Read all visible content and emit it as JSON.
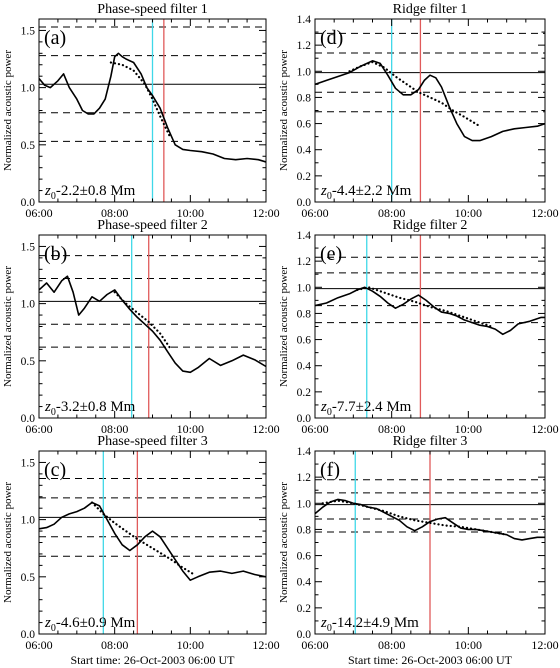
{
  "figure": {
    "xlabel": "Start time: 26-Oct-2003 06:00 UT",
    "ylabel": "Normalized acoustic power"
  },
  "colors": {
    "cyan": "#3fd8e8",
    "red": "#e05a5a",
    "data": "#000000"
  },
  "chart_data": [
    {
      "type": "line",
      "title": "Phase-speed filter 1",
      "panel_label": "(a)",
      "z0_label": "-2.2±0.8 Mm",
      "xlim": [
        6,
        12
      ],
      "ylim": [
        0,
        1.6
      ],
      "xticks": [
        6,
        8,
        10,
        12
      ],
      "xticklabels": [
        "06:00",
        "08:00",
        "10:00",
        "12:00"
      ],
      "yticks": [
        0,
        0.5,
        1.0,
        1.5
      ],
      "yticklabels": [
        "0.0",
        "0.5",
        "1.0",
        "1.5"
      ],
      "hline_solid": 1.03,
      "hlines_dashed": [
        1.53,
        1.28,
        0.78,
        0.53
      ],
      "vline_cyan": 9.0,
      "vline_red": 9.3,
      "series": [
        {
          "style": "solid",
          "x": [
            6.0,
            6.15,
            6.3,
            6.5,
            6.65,
            6.8,
            7.0,
            7.15,
            7.3,
            7.45,
            7.6,
            7.75,
            7.9,
            8.0,
            8.1,
            8.2,
            8.3,
            8.5,
            8.7,
            8.85,
            9.0,
            9.2,
            9.4,
            9.6,
            9.8,
            10.0,
            10.3,
            10.6,
            10.9,
            11.2,
            11.5,
            11.8,
            12.0
          ],
          "y": [
            1.08,
            1.02,
            1.0,
            1.06,
            1.12,
            1.0,
            0.9,
            0.8,
            0.77,
            0.77,
            0.82,
            0.9,
            1.1,
            1.27,
            1.3,
            1.27,
            1.25,
            1.22,
            1.12,
            1.0,
            0.93,
            0.82,
            0.65,
            0.5,
            0.46,
            0.45,
            0.44,
            0.42,
            0.38,
            0.37,
            0.38,
            0.37,
            0.35
          ]
        },
        {
          "style": "dotted",
          "x": [
            7.9,
            8.2,
            8.5,
            8.8,
            9.0,
            9.2,
            9.45
          ],
          "y": [
            1.22,
            1.2,
            1.15,
            1.03,
            0.9,
            0.75,
            0.58
          ]
        }
      ]
    },
    {
      "type": "line",
      "title": "Ridge filter 1",
      "panel_label": "(d)",
      "z0_label": "-4.4±2.2 Mm",
      "xlim": [
        6,
        12
      ],
      "ylim": [
        0,
        1.4
      ],
      "xticks": [
        6,
        8,
        10,
        12
      ],
      "xticklabels": [
        "06:00",
        "08:00",
        "10:00",
        "12:00"
      ],
      "yticks": [
        0,
        0.2,
        0.4,
        0.6,
        0.8,
        1.0,
        1.2,
        1.4
      ],
      "yticklabels": [
        "0.0",
        "0.2",
        "0.4",
        "0.6",
        "0.8",
        "1.0",
        "1.2",
        "1.4"
      ],
      "hline_solid": 0.99,
      "hlines_dashed": [
        1.29,
        1.14,
        0.84,
        0.69
      ],
      "vline_cyan": 8.0,
      "vline_red": 8.75,
      "series": [
        {
          "style": "solid",
          "x": [
            6.0,
            6.3,
            6.6,
            6.9,
            7.2,
            7.5,
            7.7,
            7.9,
            8.1,
            8.3,
            8.5,
            8.7,
            8.85,
            9.0,
            9.15,
            9.3,
            9.5,
            9.7,
            9.9,
            10.1,
            10.3,
            10.6,
            10.9,
            11.2,
            11.5,
            11.8,
            12.0
          ],
          "y": [
            0.9,
            0.93,
            0.96,
            0.99,
            1.04,
            1.08,
            1.06,
            0.97,
            0.87,
            0.82,
            0.82,
            0.86,
            0.93,
            0.97,
            0.95,
            0.88,
            0.73,
            0.6,
            0.5,
            0.47,
            0.47,
            0.5,
            0.54,
            0.56,
            0.57,
            0.58,
            0.6
          ]
        },
        {
          "style": "dotted",
          "x": [
            6.9,
            7.2,
            7.5,
            7.8,
            8.1,
            8.4,
            8.7,
            9.0,
            9.3,
            9.6,
            9.9,
            10.3
          ],
          "y": [
            1.0,
            1.04,
            1.07,
            1.03,
            0.96,
            0.9,
            0.84,
            0.8,
            0.76,
            0.7,
            0.65,
            0.58
          ]
        }
      ]
    },
    {
      "type": "line",
      "title": "Phase-speed filter 2",
      "panel_label": "(b)",
      "z0_label": "-3.2±0.8 Mm",
      "xlim": [
        6,
        12
      ],
      "ylim": [
        0,
        1.6
      ],
      "xticks": [
        6,
        8,
        10,
        12
      ],
      "xticklabels": [
        "06:00",
        "08:00",
        "10:00",
        "12:00"
      ],
      "yticks": [
        0,
        0.5,
        1.0,
        1.5
      ],
      "yticklabels": [
        "0.0",
        "0.5",
        "1.0",
        "1.5"
      ],
      "hline_solid": 1.02,
      "hlines_dashed": [
        1.42,
        1.22,
        0.82,
        0.62
      ],
      "vline_cyan": 8.45,
      "vline_red": 8.9,
      "series": [
        {
          "style": "solid",
          "x": [
            6.0,
            6.2,
            6.4,
            6.6,
            6.75,
            6.9,
            7.05,
            7.2,
            7.4,
            7.6,
            7.8,
            8.0,
            8.2,
            8.4,
            8.6,
            8.8,
            9.0,
            9.2,
            9.4,
            9.6,
            9.8,
            10.0,
            10.2,
            10.5,
            10.8,
            11.1,
            11.4,
            11.7,
            12.0
          ],
          "y": [
            1.12,
            1.18,
            1.1,
            1.2,
            1.24,
            1.1,
            0.9,
            0.96,
            1.06,
            1.02,
            1.08,
            1.12,
            1.03,
            0.95,
            0.88,
            0.82,
            0.76,
            0.68,
            0.58,
            0.48,
            0.41,
            0.4,
            0.44,
            0.52,
            0.46,
            0.5,
            0.55,
            0.51,
            0.45
          ]
        },
        {
          "style": "dotted",
          "x": [
            8.0,
            8.3,
            8.6,
            8.9,
            9.2,
            9.45
          ],
          "y": [
            1.1,
            1.0,
            0.92,
            0.84,
            0.74,
            0.62
          ]
        }
      ]
    },
    {
      "type": "line",
      "title": "Ridge filter 2",
      "panel_label": "(e)",
      "z0_label": "-7.7±2.4 Mm",
      "xlim": [
        6,
        12
      ],
      "ylim": [
        0,
        1.4
      ],
      "xticks": [
        6,
        8,
        10,
        12
      ],
      "xticklabels": [
        "06:00",
        "08:00",
        "10:00",
        "12:00"
      ],
      "yticks": [
        0,
        0.2,
        0.4,
        0.6,
        0.8,
        1.0,
        1.2,
        1.4
      ],
      "yticklabels": [
        "0.0",
        "0.2",
        "0.4",
        "0.6",
        "0.8",
        "1.0",
        "1.2",
        "1.4"
      ],
      "hline_solid": 0.99,
      "hlines_dashed": [
        1.23,
        1.11,
        0.86,
        0.73
      ],
      "vline_cyan": 7.35,
      "vline_red": 8.75,
      "series": [
        {
          "style": "solid",
          "x": [
            6.0,
            6.3,
            6.6,
            6.9,
            7.1,
            7.3,
            7.5,
            7.7,
            7.9,
            8.1,
            8.3,
            8.5,
            8.7,
            8.9,
            9.1,
            9.3,
            9.5,
            9.7,
            9.9,
            10.1,
            10.3,
            10.5,
            10.7,
            10.9,
            11.1,
            11.3,
            11.6,
            11.9,
            12.0
          ],
          "y": [
            0.86,
            0.88,
            0.92,
            0.95,
            0.98,
            1.0,
            0.97,
            0.93,
            0.88,
            0.84,
            0.87,
            0.91,
            0.94,
            0.9,
            0.85,
            0.81,
            0.8,
            0.78,
            0.75,
            0.73,
            0.71,
            0.7,
            0.68,
            0.64,
            0.67,
            0.72,
            0.74,
            0.77,
            0.77
          ]
        },
        {
          "style": "dotted",
          "x": [
            7.1,
            7.4,
            7.8,
            8.2,
            8.6,
            9.0,
            9.4,
            9.8,
            10.2,
            10.6
          ],
          "y": [
            0.98,
            1.0,
            0.96,
            0.92,
            0.89,
            0.85,
            0.82,
            0.78,
            0.74,
            0.7
          ]
        }
      ]
    },
    {
      "type": "line",
      "title": "Phase-speed filter 3",
      "panel_label": "(c)",
      "z0_label": "-4.6±0.9 Mm",
      "xlim": [
        6,
        12
      ],
      "ylim": [
        0,
        1.6
      ],
      "xticks": [
        6,
        8,
        10,
        12
      ],
      "xticklabels": [
        "06:00",
        "08:00",
        "10:00",
        "12:00"
      ],
      "yticks": [
        0,
        0.5,
        1.0,
        1.5
      ],
      "yticklabels": [
        "0.0",
        "0.5",
        "1.0",
        "1.5"
      ],
      "hline_solid": 1.02,
      "hlines_dashed": [
        1.36,
        1.19,
        0.85,
        0.68
      ],
      "vline_cyan": 7.7,
      "vline_red": 8.6,
      "series": [
        {
          "style": "solid",
          "x": [
            6.0,
            6.2,
            6.4,
            6.6,
            6.8,
            7.0,
            7.2,
            7.4,
            7.6,
            7.8,
            8.0,
            8.2,
            8.4,
            8.6,
            8.8,
            9.0,
            9.2,
            9.4,
            9.6,
            9.8,
            10.0,
            10.2,
            10.5,
            10.8,
            11.1,
            11.4,
            11.7,
            12.0
          ],
          "y": [
            0.92,
            0.93,
            0.96,
            1.02,
            1.05,
            1.07,
            1.1,
            1.15,
            1.12,
            1.0,
            0.88,
            0.78,
            0.73,
            0.78,
            0.85,
            0.9,
            0.85,
            0.75,
            0.65,
            0.55,
            0.47,
            0.5,
            0.54,
            0.55,
            0.53,
            0.55,
            0.52,
            0.5
          ]
        },
        {
          "style": "dotted",
          "x": [
            7.4,
            7.7,
            8.0,
            8.3,
            8.6,
            8.9,
            9.2,
            9.5,
            9.8,
            10.1
          ],
          "y": [
            1.15,
            1.05,
            0.97,
            0.9,
            0.83,
            0.77,
            0.71,
            0.65,
            0.58,
            0.52
          ]
        }
      ]
    },
    {
      "type": "line",
      "title": "Ridge filter 3",
      "panel_label": "(f)",
      "z0_label": "-14.2±4.9 Mm",
      "xlim": [
        6,
        12
      ],
      "ylim": [
        0,
        1.4
      ],
      "xticks": [
        6,
        8,
        10,
        12
      ],
      "xticklabels": [
        "06:00",
        "08:00",
        "10:00",
        "12:00"
      ],
      "yticks": [
        0,
        0.2,
        0.4,
        0.6,
        0.8,
        1.0,
        1.2,
        1.4
      ],
      "yticklabels": [
        "0.0",
        "0.2",
        "0.4",
        "0.6",
        "0.8",
        "1.0",
        "1.2",
        "1.4"
      ],
      "hline_solid": 0.99,
      "hlines_dashed": [
        1.18,
        1.08,
        0.88,
        0.78
      ],
      "vline_cyan": 7.05,
      "vline_red": 9.0,
      "series": [
        {
          "style": "solid",
          "x": [
            6.0,
            6.2,
            6.4,
            6.6,
            6.8,
            7.0,
            7.2,
            7.4,
            7.6,
            7.8,
            8.0,
            8.2,
            8.4,
            8.6,
            8.8,
            9.0,
            9.2,
            9.4,
            9.6,
            9.8,
            10.0,
            10.2,
            10.4,
            10.6,
            10.8,
            11.0,
            11.2,
            11.4,
            11.6,
            11.8,
            12.0
          ],
          "y": [
            0.92,
            0.97,
            1.01,
            1.03,
            1.02,
            1.0,
            0.99,
            0.97,
            0.96,
            0.93,
            0.9,
            0.87,
            0.82,
            0.79,
            0.82,
            0.86,
            0.88,
            0.89,
            0.85,
            0.81,
            0.8,
            0.8,
            0.79,
            0.78,
            0.77,
            0.76,
            0.73,
            0.72,
            0.73,
            0.74,
            0.74
          ]
        },
        {
          "style": "dotted",
          "x": [
            6.2,
            6.6,
            7.0,
            7.4,
            7.8,
            8.2,
            8.6,
            9.0,
            9.4,
            9.8,
            10.2,
            10.6,
            11.0
          ],
          "y": [
            1.0,
            1.02,
            1.0,
            0.97,
            0.94,
            0.9,
            0.87,
            0.85,
            0.83,
            0.82,
            0.8,
            0.78,
            0.76
          ]
        }
      ]
    }
  ]
}
